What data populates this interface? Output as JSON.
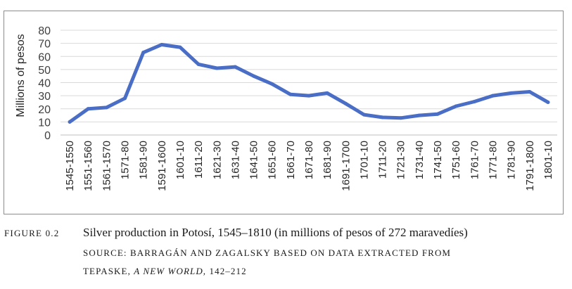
{
  "chart_data": {
    "type": "line",
    "ylabel": "Millions of pesos",
    "ylim": [
      0,
      80
    ],
    "yticks": [
      "0",
      "10",
      "20",
      "30",
      "40",
      "50",
      "60",
      "70",
      "80"
    ],
    "grid": true,
    "categories": [
      "1545-1550",
      "1551-1560",
      "1561-1570",
      "1571-80",
      "1581-90",
      "1591-1600",
      "1601-10",
      "1611-20",
      "1621-30",
      "1631-40",
      "1641-50",
      "1651-60",
      "1661-70",
      "1671-80",
      "1681-90",
      "1691-1700",
      "1701-10",
      "1711-20",
      "1721-30",
      "1731-40",
      "1741-50",
      "1751-60",
      "1761-70",
      "1771-80",
      "1781-90",
      "1791-1800",
      "1801-10"
    ],
    "series": [
      {
        "values": [
          10,
          20,
          21,
          28,
          63,
          69,
          67,
          54,
          51,
          52,
          45,
          39,
          31,
          30,
          32,
          24,
          15.5,
          13.5,
          13,
          15,
          16,
          22,
          25.5,
          30,
          32,
          33,
          25
        ]
      }
    ],
    "line_color": "#4a6ec5"
  },
  "caption": {
    "figure_label": "FIGURE 0.2",
    "title": "Silver production in Potosí, 1545–1810 (in millions of pesos of 272 maravedíes)",
    "source_prefix": "SOURCE: BARRAGÁN AND ZAGALSKY BASED ON DATA EXTRACTED FROM",
    "source_author": "TEPASKE, ",
    "source_work": "A NEW WORLD,",
    "source_pages": " 142–212"
  }
}
